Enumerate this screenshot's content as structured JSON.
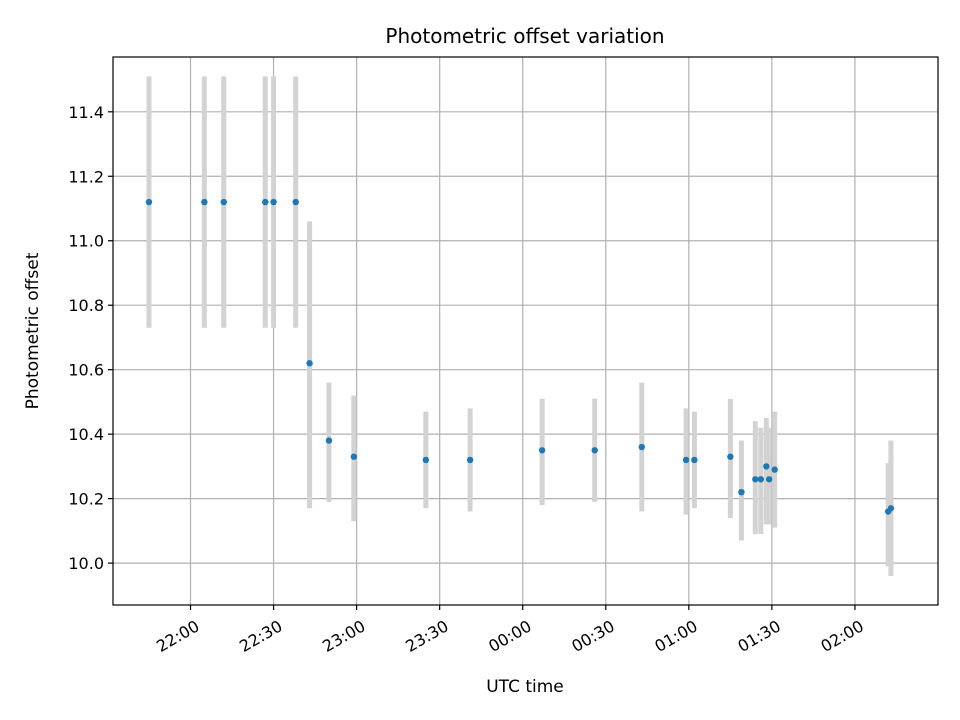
{
  "chart_data": {
    "type": "scatter",
    "title": "Photometric offset variation",
    "xlabel": "UTC time",
    "ylabel": "Photometric offset",
    "x_axis": "time",
    "x_range": [
      "21:32",
      "02:30"
    ],
    "y_range": [
      9.87,
      11.57
    ],
    "x_ticks": [
      "22:00",
      "22:30",
      "23:00",
      "23:30",
      "00:00",
      "00:30",
      "01:00",
      "01:30",
      "02:00"
    ],
    "y_ticks": [
      10.0,
      10.2,
      10.4,
      10.6,
      10.8,
      11.0,
      11.2,
      11.4
    ],
    "grid": true,
    "colors": {
      "marker": "#1f77b4",
      "errorbar": "#d3d3d3"
    },
    "points": [
      {
        "x": "21:45",
        "y": 11.12,
        "ylo": 10.73,
        "yhi": 11.51
      },
      {
        "x": "22:05",
        "y": 11.12,
        "ylo": 10.73,
        "yhi": 11.51
      },
      {
        "x": "22:12",
        "y": 11.12,
        "ylo": 10.73,
        "yhi": 11.51
      },
      {
        "x": "22:27",
        "y": 11.12,
        "ylo": 10.73,
        "yhi": 11.51
      },
      {
        "x": "22:30",
        "y": 11.12,
        "ylo": 10.73,
        "yhi": 11.51
      },
      {
        "x": "22:38",
        "y": 11.12,
        "ylo": 10.73,
        "yhi": 11.51
      },
      {
        "x": "22:43",
        "y": 10.62,
        "ylo": 10.17,
        "yhi": 11.06
      },
      {
        "x": "22:50",
        "y": 10.38,
        "ylo": 10.19,
        "yhi": 10.56
      },
      {
        "x": "22:59",
        "y": 10.33,
        "ylo": 10.13,
        "yhi": 10.52
      },
      {
        "x": "23:25",
        "y": 10.32,
        "ylo": 10.17,
        "yhi": 10.47
      },
      {
        "x": "23:41",
        "y": 10.32,
        "ylo": 10.16,
        "yhi": 10.48
      },
      {
        "x": "00:07",
        "y": 10.35,
        "ylo": 10.18,
        "yhi": 10.51
      },
      {
        "x": "00:26",
        "y": 10.35,
        "ylo": 10.19,
        "yhi": 10.51
      },
      {
        "x": "00:43",
        "y": 10.36,
        "ylo": 10.16,
        "yhi": 10.56
      },
      {
        "x": "00:59",
        "y": 10.32,
        "ylo": 10.15,
        "yhi": 10.48
      },
      {
        "x": "01:02",
        "y": 10.32,
        "ylo": 10.17,
        "yhi": 10.47
      },
      {
        "x": "01:15",
        "y": 10.33,
        "ylo": 10.14,
        "yhi": 10.51
      },
      {
        "x": "01:19",
        "y": 10.22,
        "ylo": 10.07,
        "yhi": 10.38
      },
      {
        "x": "01:24",
        "y": 10.26,
        "ylo": 10.09,
        "yhi": 10.44
      },
      {
        "x": "01:26",
        "y": 10.26,
        "ylo": 10.09,
        "yhi": 10.42
      },
      {
        "x": "01:28",
        "y": 10.3,
        "ylo": 10.12,
        "yhi": 10.45
      },
      {
        "x": "01:29",
        "y": 10.26,
        "ylo": 10.12,
        "yhi": 10.42
      },
      {
        "x": "01:31",
        "y": 10.29,
        "ylo": 10.11,
        "yhi": 10.47
      },
      {
        "x": "02:12",
        "y": 10.16,
        "ylo": 9.99,
        "yhi": 10.31
      },
      {
        "x": "02:13",
        "y": 10.17,
        "ylo": 9.96,
        "yhi": 10.38
      }
    ]
  }
}
